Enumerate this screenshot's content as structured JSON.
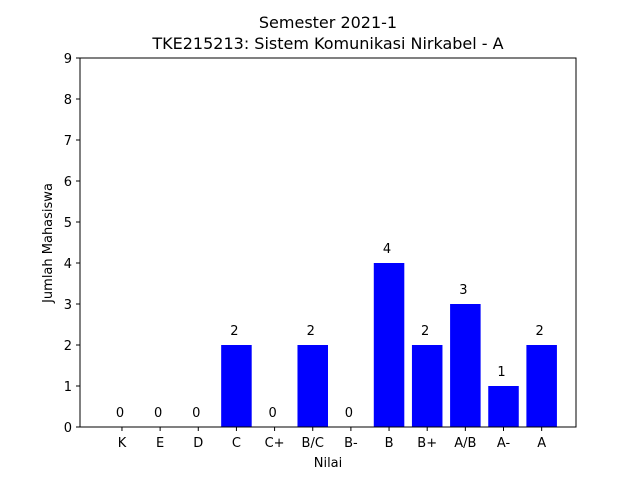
{
  "chart_data": {
    "type": "bar",
    "title": "Semester 2021-1",
    "subtitle": "TKE215213: Sistem Komunikasi Nirkabel - A",
    "xlabel": "Nilai",
    "ylabel": "Jumlah Mahasiswa",
    "categories": [
      "K",
      "E",
      "D",
      "C",
      "C+",
      "B/C",
      "B-",
      "B",
      "B+",
      "A/B",
      "A-",
      "A"
    ],
    "values": [
      0,
      0,
      0,
      2,
      0,
      2,
      0,
      4,
      2,
      3,
      1,
      2
    ],
    "data_labels": [
      "0",
      "0",
      "0",
      "2",
      "0",
      "2",
      "0",
      "4",
      "2",
      "3",
      "1",
      "2"
    ],
    "ylim": [
      0,
      9
    ],
    "yticks": [
      "0",
      "1",
      "2",
      "3",
      "4",
      "5",
      "6",
      "7",
      "8",
      "9"
    ],
    "grid": false,
    "legend": "none",
    "bar_color": "#0000ff"
  }
}
